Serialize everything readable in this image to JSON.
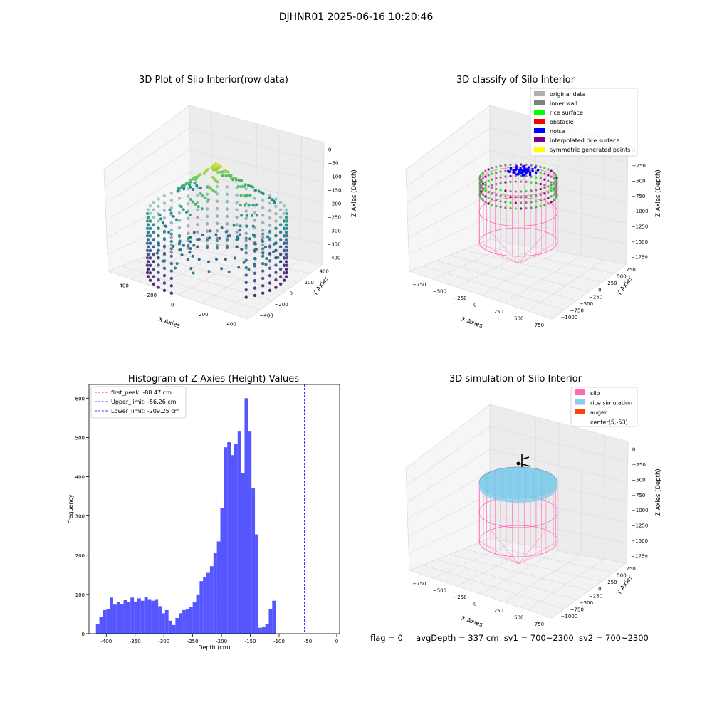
{
  "suptitle": "DJHNR01 2025-06-16 10:20:46",
  "footer": {
    "flag": "flag = 0",
    "avg": "avgDepth = 337 cm",
    "sv1": "sv1 = 700~2300",
    "sv2": "sv2 = 700~2300"
  },
  "colors": {
    "histogram_bar": "#4d4dff",
    "first_peak_line": "#ff0000",
    "limit_line": "#0000ff",
    "silo": "#ff69b4",
    "rice_simulation": "#87ceeb",
    "auger": "#ff4500",
    "noise": "#0000ff",
    "inner_wall": "#808080",
    "rice_surface": "#00ff00",
    "obstacle": "#ff0000",
    "original_data": "#b0b0b0",
    "interpolated_rice_surface": "#800080",
    "symmetric_generated_points": "#ffff00"
  },
  "chart_data": [
    {
      "type": "scatter",
      "title": "3D Plot of Silo Interior(row data)",
      "xlabel": "X Axies",
      "ylabel": "Y Axies",
      "zlabel": "Z Axies (Depth)",
      "x_ticks": [
        "−400",
        "−200",
        "0",
        "200",
        "400"
      ],
      "y_ticks": [
        "−400",
        "−200",
        "0",
        "200",
        "400"
      ],
      "z_ticks": [
        "0",
        "−50",
        "−100",
        "−150",
        "−200",
        "−250",
        "−300",
        "−350",
        "−400"
      ],
      "xlim": [
        -500,
        500
      ],
      "ylim": [
        -500,
        500
      ],
      "zlim": [
        -420,
        0
      ],
      "colormap": "viridis",
      "grid": true
    },
    {
      "type": "scatter",
      "title": "3D classify of Silo Interior",
      "xlabel": "X Axies",
      "ylabel": "Y Axies",
      "zlabel": "Z Axies (Depth)",
      "x_ticks": [
        "−750",
        "−500",
        "−250",
        "0",
        "250",
        "500",
        "750"
      ],
      "y_ticks": [
        "−1000",
        "−750",
        "−500",
        "−250",
        "0",
        "250",
        "500",
        "750"
      ],
      "z_ticks": [
        "0",
        "−250",
        "−500",
        "−750",
        "−1000",
        "−1250",
        "−1500",
        "−1750"
      ],
      "legend_position": "top-right",
      "legend": [
        {
          "label": "original data",
          "color": "#b0b0b0"
        },
        {
          "label": "inner wall",
          "color": "#808080"
        },
        {
          "label": "rice surface",
          "color": "#00ff00"
        },
        {
          "label": "obstacle",
          "color": "#ff0000"
        },
        {
          "label": "noise",
          "color": "#0000ff"
        },
        {
          "label": "interpolated rice surface",
          "color": "#800080"
        },
        {
          "label": "symmetric generated points",
          "color": "#ffff00"
        }
      ],
      "grid": true
    },
    {
      "type": "bar",
      "title": "Histogram of Z-Axies (Height) Values",
      "xlabel": "Depth (cm)",
      "ylabel": "Frequency",
      "xlim": [
        -430,
        5
      ],
      "ylim": [
        0,
        635
      ],
      "x_ticks": [
        -400,
        -350,
        -300,
        -250,
        -200,
        -150,
        -100,
        -50,
        0
      ],
      "y_ticks": [
        0,
        100,
        200,
        300,
        400,
        500,
        600
      ],
      "bin_start": -418,
      "bin_width": 6,
      "values": [
        25,
        42,
        60,
        62,
        92,
        74,
        80,
        76,
        86,
        80,
        92,
        82,
        90,
        84,
        93,
        88,
        84,
        88,
        70,
        52,
        60,
        33,
        22,
        40,
        52,
        60,
        62,
        68,
        80,
        100,
        134,
        145,
        155,
        172,
        205,
        235,
        320,
        475,
        488,
        455,
        483,
        515,
        410,
        600,
        515,
        370,
        253,
        15,
        18,
        25,
        62,
        84
      ],
      "lines": [
        {
          "label": "first_peak: -88.47 cm",
          "value": -88.47,
          "color": "#ff0000"
        },
        {
          "label": "Upper_limit: -56.26 cm",
          "value": -56.26,
          "color": "#0000ff"
        },
        {
          "label": "Lower_limit: -209.25 cm",
          "value": -209.25,
          "color": "#0000ff"
        }
      ],
      "legend_position": "top-left"
    },
    {
      "type": "scatter",
      "title": "3D simulation of Silo Interior",
      "xlabel": "X Axies",
      "ylabel": "Y Axies",
      "zlabel": "Z Axies (Depth)",
      "x_ticks": [
        "−750",
        "−500",
        "−250",
        "0",
        "250",
        "500",
        "750"
      ],
      "y_ticks": [
        "−1000",
        "−750",
        "−500",
        "−250",
        "0",
        "250",
        "500",
        "750"
      ],
      "z_ticks": [
        "0",
        "−250",
        "−500",
        "−750",
        "−1000",
        "−1250",
        "−1500",
        "−1750"
      ],
      "legend_position": "top-right",
      "legend": [
        {
          "label": "silo",
          "color": "#ff69b4"
        },
        {
          "label": "rice simulation",
          "color": "#87ceeb"
        },
        {
          "label": "auger",
          "color": "#ff4500"
        },
        {
          "label": "center(5,-53)",
          "color": "#ffffff"
        }
      ],
      "grid": true
    }
  ]
}
